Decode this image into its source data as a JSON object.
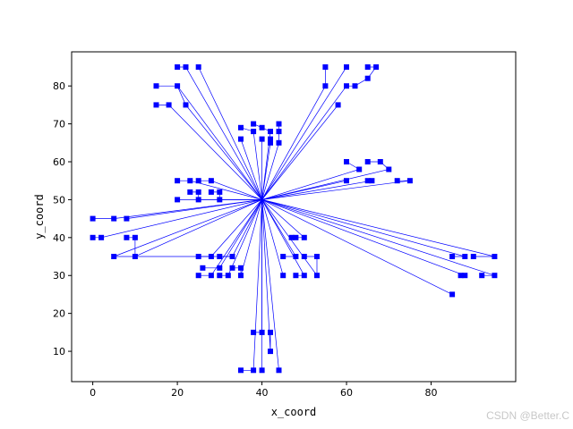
{
  "chart_data": {
    "type": "scatter",
    "title": "",
    "xlabel": "x_coord",
    "ylabel": "y_coord",
    "xlim": [
      -5,
      100
    ],
    "ylim": [
      2,
      89
    ],
    "xticks": [
      0,
      20,
      40,
      60,
      80
    ],
    "yticks": [
      10,
      20,
      30,
      40,
      50,
      60,
      70,
      80
    ],
    "grid": false,
    "legend": "none",
    "marker": "square",
    "color": "#0000ff",
    "depot": {
      "x": 40,
      "y": 50
    },
    "points": [
      [
        20,
        85
      ],
      [
        22,
        85
      ],
      [
        25,
        85
      ],
      [
        15,
        80
      ],
      [
        20,
        80
      ],
      [
        15,
        75
      ],
      [
        18,
        75
      ],
      [
        22,
        75
      ],
      [
        55,
        85
      ],
      [
        60,
        85
      ],
      [
        65,
        85
      ],
      [
        67,
        85
      ],
      [
        55,
        80
      ],
      [
        60,
        80
      ],
      [
        62,
        80
      ],
      [
        65,
        82
      ],
      [
        58,
        75
      ],
      [
        38,
        70
      ],
      [
        35,
        69
      ],
      [
        38,
        68
      ],
      [
        40,
        69
      ],
      [
        42,
        68
      ],
      [
        44,
        68
      ],
      [
        44,
        70
      ],
      [
        35,
        66
      ],
      [
        40,
        66
      ],
      [
        42,
        66
      ],
      [
        42,
        65
      ],
      [
        44,
        65
      ],
      [
        60,
        60
      ],
      [
        63,
        58
      ],
      [
        65,
        60
      ],
      [
        68,
        60
      ],
      [
        70,
        58
      ],
      [
        60,
        55
      ],
      [
        65,
        55
      ],
      [
        66,
        55
      ],
      [
        72,
        55
      ],
      [
        75,
        55
      ],
      [
        20,
        55
      ],
      [
        23,
        55
      ],
      [
        25,
        55
      ],
      [
        28,
        55
      ],
      [
        20,
        50
      ],
      [
        23,
        52
      ],
      [
        25,
        52
      ],
      [
        25,
        50
      ],
      [
        28,
        52
      ],
      [
        30,
        52
      ],
      [
        30,
        50
      ],
      [
        0,
        45
      ],
      [
        5,
        45
      ],
      [
        8,
        45
      ],
      [
        0,
        40
      ],
      [
        2,
        40
      ],
      [
        8,
        40
      ],
      [
        10,
        40
      ],
      [
        5,
        35
      ],
      [
        10,
        35
      ],
      [
        47,
        40
      ],
      [
        48,
        40
      ],
      [
        50,
        40
      ],
      [
        45,
        35
      ],
      [
        48,
        35
      ],
      [
        50,
        35
      ],
      [
        53,
        35
      ],
      [
        45,
        30
      ],
      [
        48,
        30
      ],
      [
        50,
        30
      ],
      [
        53,
        30
      ],
      [
        25,
        35
      ],
      [
        28,
        35
      ],
      [
        30,
        35
      ],
      [
        33,
        35
      ],
      [
        26,
        32
      ],
      [
        30,
        32
      ],
      [
        33,
        32
      ],
      [
        35,
        32
      ],
      [
        25,
        30
      ],
      [
        28,
        30
      ],
      [
        30,
        30
      ],
      [
        32,
        30
      ],
      [
        35,
        30
      ],
      [
        85,
        35
      ],
      [
        88,
        35
      ],
      [
        90,
        35
      ],
      [
        95,
        35
      ],
      [
        85,
        25
      ],
      [
        87,
        30
      ],
      [
        88,
        30
      ],
      [
        92,
        30
      ],
      [
        95,
        30
      ],
      [
        38,
        15
      ],
      [
        40,
        15
      ],
      [
        42,
        15
      ],
      [
        42,
        10
      ],
      [
        35,
        5
      ],
      [
        38,
        5
      ],
      [
        40,
        5
      ],
      [
        44,
        5
      ]
    ],
    "routes": [
      [
        [
          20,
          85
        ],
        [
          22,
          85
        ],
        [
          40,
          50
        ]
      ],
      [
        [
          25,
          85
        ],
        [
          40,
          50
        ]
      ],
      [
        [
          20,
          80
        ],
        [
          40,
          50
        ]
      ],
      [
        [
          15,
          80
        ],
        [
          20,
          80
        ],
        [
          22,
          75
        ],
        [
          40,
          50
        ]
      ],
      [
        [
          15,
          75
        ],
        [
          18,
          75
        ],
        [
          40,
          50
        ]
      ],
      [
        [
          55,
          85
        ],
        [
          55,
          80
        ],
        [
          40,
          50
        ]
      ],
      [
        [
          60,
          85
        ],
        [
          40,
          50
        ]
      ],
      [
        [
          65,
          85
        ],
        [
          67,
          85
        ],
        [
          65,
          82
        ],
        [
          62,
          80
        ],
        [
          60,
          80
        ],
        [
          40,
          50
        ]
      ],
      [
        [
          58,
          75
        ],
        [
          40,
          50
        ]
      ],
      [
        [
          38,
          70
        ],
        [
          40,
          69
        ],
        [
          42,
          68
        ],
        [
          40,
          50
        ]
      ],
      [
        [
          35,
          69
        ],
        [
          38,
          68
        ],
        [
          40,
          50
        ]
      ],
      [
        [
          44,
          70
        ],
        [
          44,
          68
        ],
        [
          44,
          65
        ],
        [
          40,
          50
        ]
      ],
      [
        [
          35,
          66
        ],
        [
          40,
          50
        ]
      ],
      [
        [
          40,
          66
        ],
        [
          40,
          50
        ]
      ],
      [
        [
          42,
          66
        ],
        [
          42,
          65
        ],
        [
          40,
          50
        ]
      ],
      [
        [
          60,
          60
        ],
        [
          63,
          58
        ],
        [
          40,
          50
        ]
      ],
      [
        [
          65,
          60
        ],
        [
          68,
          60
        ],
        [
          70,
          58
        ],
        [
          40,
          50
        ]
      ],
      [
        [
          60,
          55
        ],
        [
          40,
          50
        ]
      ],
      [
        [
          65,
          55
        ],
        [
          66,
          55
        ],
        [
          40,
          50
        ]
      ],
      [
        [
          72,
          55
        ],
        [
          75,
          55
        ],
        [
          40,
          50
        ]
      ],
      [
        [
          20,
          55
        ],
        [
          23,
          55
        ],
        [
          40,
          50
        ]
      ],
      [
        [
          25,
          55
        ],
        [
          28,
          55
        ],
        [
          40,
          50
        ]
      ],
      [
        [
          20,
          50
        ],
        [
          40,
          50
        ]
      ],
      [
        [
          23,
          52
        ],
        [
          25,
          52
        ],
        [
          25,
          50
        ],
        [
          40,
          50
        ]
      ],
      [
        [
          28,
          52
        ],
        [
          30,
          52
        ],
        [
          30,
          50
        ],
        [
          40,
          50
        ]
      ],
      [
        [
          0,
          45
        ],
        [
          5,
          45
        ],
        [
          40,
          50
        ]
      ],
      [
        [
          8,
          45
        ],
        [
          40,
          50
        ]
      ],
      [
        [
          0,
          40
        ],
        [
          2,
          40
        ],
        [
          40,
          50
        ]
      ],
      [
        [
          8,
          40
        ],
        [
          10,
          40
        ],
        [
          10,
          35
        ],
        [
          40,
          50
        ]
      ],
      [
        [
          5,
          35
        ],
        [
          40,
          50
        ]
      ],
      [
        [
          47,
          40
        ],
        [
          48,
          40
        ],
        [
          50,
          40
        ],
        [
          40,
          50
        ]
      ],
      [
        [
          45,
          35
        ],
        [
          48,
          35
        ],
        [
          40,
          50
        ]
      ],
      [
        [
          50,
          35
        ],
        [
          53,
          35
        ],
        [
          53,
          30
        ],
        [
          40,
          50
        ]
      ],
      [
        [
          45,
          30
        ],
        [
          40,
          50
        ]
      ],
      [
        [
          48,
          30
        ],
        [
          50,
          30
        ],
        [
          40,
          50
        ]
      ],
      [
        [
          25,
          35
        ],
        [
          28,
          35
        ],
        [
          40,
          50
        ]
      ],
      [
        [
          30,
          35
        ],
        [
          33,
          35
        ],
        [
          40,
          50
        ]
      ],
      [
        [
          26,
          32
        ],
        [
          30,
          32
        ],
        [
          40,
          50
        ]
      ],
      [
        [
          33,
          32
        ],
        [
          35,
          32
        ],
        [
          35,
          30
        ],
        [
          40,
          50
        ]
      ],
      [
        [
          25,
          30
        ],
        [
          28,
          30
        ],
        [
          40,
          50
        ]
      ],
      [
        [
          30,
          30
        ],
        [
          32,
          30
        ],
        [
          40,
          50
        ]
      ],
      [
        [
          85,
          35
        ],
        [
          88,
          35
        ],
        [
          40,
          50
        ]
      ],
      [
        [
          90,
          35
        ],
        [
          95,
          35
        ],
        [
          40,
          50
        ]
      ],
      [
        [
          85,
          25
        ],
        [
          40,
          50
        ]
      ],
      [
        [
          87,
          30
        ],
        [
          88,
          30
        ],
        [
          40,
          50
        ]
      ],
      [
        [
          92,
          30
        ],
        [
          95,
          30
        ],
        [
          40,
          50
        ]
      ],
      [
        [
          38,
          15
        ],
        [
          40,
          15
        ],
        [
          40,
          50
        ]
      ],
      [
        [
          42,
          15
        ],
        [
          42,
          10
        ],
        [
          40,
          50
        ]
      ],
      [
        [
          35,
          5
        ],
        [
          38,
          5
        ],
        [
          40,
          50
        ]
      ],
      [
        [
          40,
          5
        ],
        [
          40,
          50
        ]
      ],
      [
        [
          44,
          5
        ],
        [
          40,
          50
        ]
      ],
      [
        [
          5,
          35
        ],
        [
          33,
          35
        ]
      ]
    ]
  },
  "watermark": "CSDN @Better.C"
}
